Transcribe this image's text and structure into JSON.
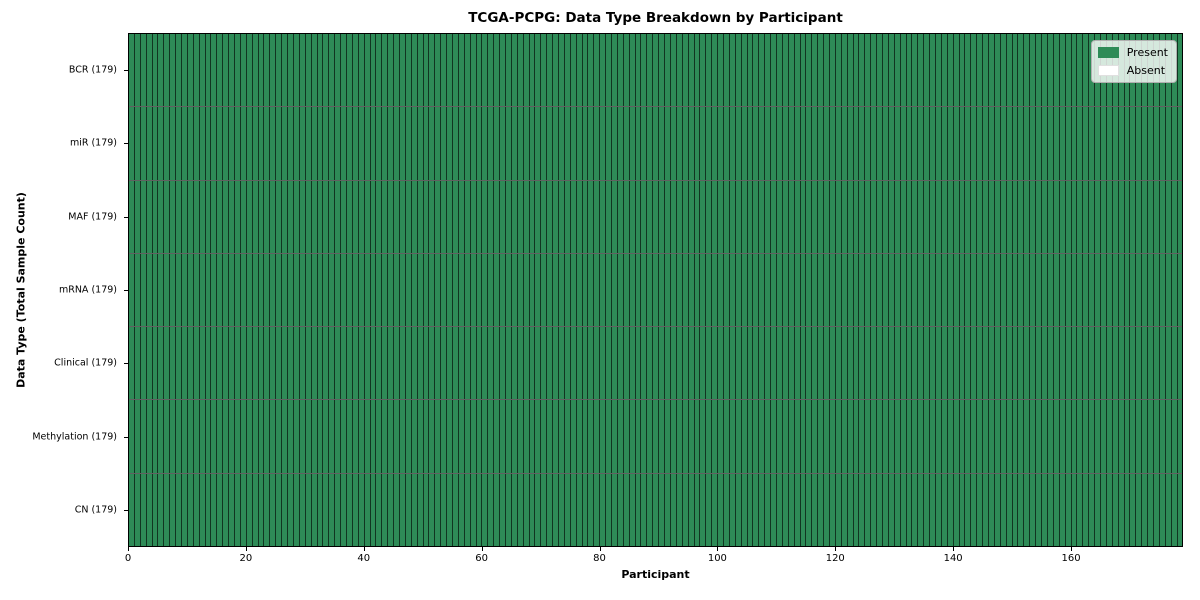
{
  "chart_data": {
    "type": "heatmap",
    "title": "TCGA-PCPG: Data Type Breakdown by Participant",
    "xlabel": "Participant",
    "ylabel": "Data Type (Total Sample Count)",
    "xlim": [
      0,
      179
    ],
    "x_ticks": [
      0,
      20,
      40,
      60,
      80,
      100,
      120,
      140,
      160
    ],
    "n_participants": 179,
    "rows": [
      {
        "label": "BCR (179)",
        "data_type": "BCR",
        "total_samples": 179,
        "present_count": 179
      },
      {
        "label": "miR (179)",
        "data_type": "miR",
        "total_samples": 179,
        "present_count": 179
      },
      {
        "label": "MAF (179)",
        "data_type": "MAF",
        "total_samples": 179,
        "present_count": 179
      },
      {
        "label": "mRNA (179)",
        "data_type": "mRNA",
        "total_samples": 179,
        "present_count": 179
      },
      {
        "label": "Clinical (179)",
        "data_type": "Clinical",
        "total_samples": 179,
        "present_count": 179
      },
      {
        "label": "Methylation (179)",
        "data_type": "Methylation",
        "total_samples": 179,
        "present_count": 179
      },
      {
        "label": "CN (179)",
        "data_type": "CN",
        "total_samples": 179,
        "present_count": 179
      }
    ],
    "legend": {
      "position": "upper right",
      "entries": [
        {
          "label": "Present",
          "color": "#2e8b57"
        },
        {
          "label": "Absent",
          "color": "#ffffff"
        }
      ]
    },
    "colors": {
      "present": "#2e8b57",
      "absent": "#ffffff",
      "cell_edge": "rgba(0,0,0,0.62)",
      "spine": "#000000"
    }
  }
}
